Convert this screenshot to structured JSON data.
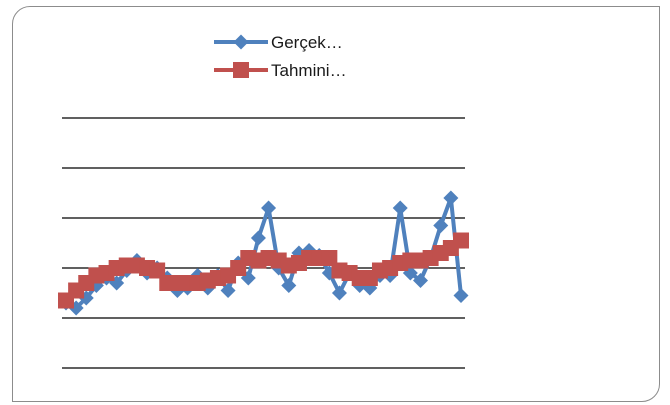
{
  "chart_data": {
    "type": "line",
    "title": "",
    "xlabel": "",
    "ylabel": "",
    "grid": true,
    "y_tick_labels_visible": false,
    "x_tick_labels_visible": false,
    "legend": "top",
    "ylim": [
      0,
      5
    ],
    "series": [
      {
        "name": "Gerçek…",
        "color": "#4f81bd",
        "marker": "diamond",
        "values": [
          1.3,
          1.2,
          1.4,
          1.65,
          1.8,
          1.7,
          1.95,
          2.15,
          1.9,
          2.0,
          1.8,
          1.55,
          1.6,
          1.85,
          1.6,
          1.85,
          1.55,
          2.1,
          1.8,
          2.6,
          3.2,
          2.0,
          1.65,
          2.3,
          2.35,
          2.25,
          1.9,
          1.5,
          1.9,
          1.65,
          1.6,
          1.85,
          1.85,
          3.2,
          1.9,
          1.75,
          2.2,
          2.85,
          3.4,
          1.45
        ]
      },
      {
        "name": "Tahmini…",
        "color": "#c0504d",
        "marker": "square",
        "values": [
          1.35,
          1.55,
          1.7,
          1.85,
          1.9,
          2.0,
          2.05,
          2.05,
          2.0,
          1.95,
          1.7,
          1.7,
          1.7,
          1.7,
          1.75,
          1.8,
          1.85,
          2.0,
          2.2,
          2.15,
          2.2,
          2.15,
          2.05,
          2.1,
          2.2,
          2.2,
          2.2,
          1.95,
          1.9,
          1.8,
          1.8,
          1.95,
          2.0,
          2.1,
          2.15,
          2.15,
          2.2,
          2.3,
          2.4,
          2.55
        ]
      }
    ]
  }
}
